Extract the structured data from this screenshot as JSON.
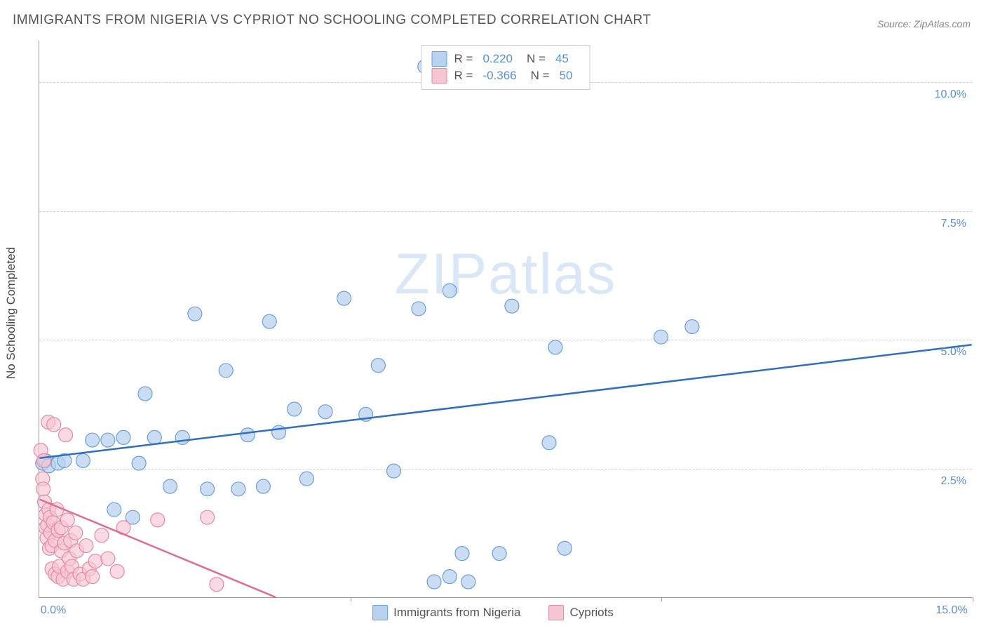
{
  "title": "IMMIGRANTS FROM NIGERIA VS CYPRIOT NO SCHOOLING COMPLETED CORRELATION CHART",
  "source": "Source: ZipAtlas.com",
  "ylabel": "No Schooling Completed",
  "watermark_a": "ZIP",
  "watermark_b": "atlas",
  "chart": {
    "type": "scatter",
    "background_color": "#ffffff",
    "grid_color": "#d0d0d0",
    "axis_color": "#999999",
    "text_color": "#555555",
    "tick_label_color": "#5a8fd6",
    "xlim": [
      0,
      15
    ],
    "ylim": [
      0,
      10.8
    ],
    "y_ticks": [
      2.5,
      5.0,
      7.5,
      10.0
    ],
    "y_tick_labels": [
      "2.5%",
      "5.0%",
      "7.5%",
      "10.0%"
    ],
    "x_ticks": [
      0,
      5,
      10,
      15
    ],
    "x_tick_labels_shown": {
      "0": "0.0%",
      "15": "15.0%"
    },
    "legend": {
      "rows": [
        {
          "swatch_fill": "#b8d2ef",
          "swatch_border": "#6a9fd8",
          "r_label": "R =",
          "r_value": "0.220",
          "n_label": "N =",
          "n_value": "45"
        },
        {
          "swatch_fill": "#f6c6d2",
          "swatch_border": "#e58aa4",
          "r_label": "R =",
          "r_value": "-0.366",
          "n_label": "N =",
          "n_value": "50"
        }
      ]
    },
    "bottom_legend": [
      {
        "swatch_fill": "#b8d2ef",
        "swatch_border": "#6a9fd8",
        "label": "Immigrants from Nigeria"
      },
      {
        "swatch_fill": "#f6c6d2",
        "swatch_border": "#e58aa4",
        "label": "Cypriots"
      }
    ],
    "series": [
      {
        "name": "nigeria",
        "marker_fill": "#b8d2ef",
        "marker_stroke": "#6a9fd8",
        "marker_opacity": 0.75,
        "marker_radius": 10,
        "line_color": "#2e6fc1",
        "line_width": 2.5,
        "trend": {
          "x1": 0,
          "y1": 2.7,
          "x2": 15,
          "y2": 4.9
        },
        "points": [
          [
            0.05,
            2.6
          ],
          [
            0.1,
            2.65
          ],
          [
            0.15,
            2.55
          ],
          [
            0.3,
            2.6
          ],
          [
            0.4,
            2.65
          ],
          [
            0.7,
            2.65
          ],
          [
            0.85,
            3.05
          ],
          [
            1.1,
            3.05
          ],
          [
            1.2,
            1.7
          ],
          [
            1.35,
            3.1
          ],
          [
            1.5,
            1.55
          ],
          [
            1.6,
            2.6
          ],
          [
            1.7,
            3.95
          ],
          [
            1.85,
            3.1
          ],
          [
            2.1,
            2.15
          ],
          [
            2.3,
            3.1
          ],
          [
            2.5,
            5.5
          ],
          [
            2.7,
            2.1
          ],
          [
            3.0,
            4.4
          ],
          [
            3.2,
            2.1
          ],
          [
            3.35,
            3.15
          ],
          [
            3.6,
            2.15
          ],
          [
            3.7,
            5.35
          ],
          [
            3.85,
            3.2
          ],
          [
            4.1,
            3.65
          ],
          [
            4.3,
            2.3
          ],
          [
            4.6,
            3.6
          ],
          [
            4.9,
            5.8
          ],
          [
            5.25,
            3.55
          ],
          [
            5.45,
            4.5
          ],
          [
            5.7,
            2.45
          ],
          [
            6.1,
            5.6
          ],
          [
            6.2,
            10.3
          ],
          [
            6.35,
            0.3
          ],
          [
            6.6,
            0.4
          ],
          [
            6.6,
            5.95
          ],
          [
            6.8,
            0.85
          ],
          [
            6.9,
            0.3
          ],
          [
            7.4,
            0.85
          ],
          [
            7.6,
            5.65
          ],
          [
            8.2,
            3.0
          ],
          [
            8.3,
            4.85
          ],
          [
            8.45,
            0.95
          ],
          [
            10.0,
            5.05
          ],
          [
            10.5,
            5.25
          ]
        ]
      },
      {
        "name": "cypriots",
        "marker_fill": "#f6c6d2",
        "marker_stroke": "#e58aa4",
        "marker_opacity": 0.65,
        "marker_radius": 10,
        "line_color": "#e26b8f",
        "line_width": 2.5,
        "trend": {
          "x1": 0,
          "y1": 1.9,
          "x2": 3.8,
          "y2": 0.0
        },
        "points": [
          [
            0.02,
            2.85
          ],
          [
            0.05,
            2.3
          ],
          [
            0.06,
            2.1
          ],
          [
            0.07,
            2.65
          ],
          [
            0.08,
            1.85
          ],
          [
            0.1,
            1.6
          ],
          [
            0.1,
            1.35
          ],
          [
            0.12,
            1.15
          ],
          [
            0.13,
            1.4
          ],
          [
            0.14,
            3.4
          ],
          [
            0.15,
            1.7
          ],
          [
            0.16,
            0.95
          ],
          [
            0.17,
            1.55
          ],
          [
            0.18,
            1.25
          ],
          [
            0.2,
            1.0
          ],
          [
            0.2,
            0.55
          ],
          [
            0.22,
            1.45
          ],
          [
            0.23,
            3.35
          ],
          [
            0.25,
            1.1
          ],
          [
            0.25,
            0.45
          ],
          [
            0.28,
            1.7
          ],
          [
            0.3,
            0.4
          ],
          [
            0.3,
            1.3
          ],
          [
            0.32,
            0.6
          ],
          [
            0.35,
            0.9
          ],
          [
            0.35,
            1.35
          ],
          [
            0.38,
            0.35
          ],
          [
            0.4,
            1.05
          ],
          [
            0.42,
            3.15
          ],
          [
            0.45,
            1.5
          ],
          [
            0.45,
            0.5
          ],
          [
            0.48,
            0.75
          ],
          [
            0.5,
            1.1
          ],
          [
            0.52,
            0.6
          ],
          [
            0.55,
            0.35
          ],
          [
            0.58,
            1.25
          ],
          [
            0.6,
            0.9
          ],
          [
            0.65,
            0.45
          ],
          [
            0.7,
            0.35
          ],
          [
            0.75,
            1.0
          ],
          [
            0.8,
            0.55
          ],
          [
            0.85,
            0.4
          ],
          [
            0.9,
            0.7
          ],
          [
            1.0,
            1.2
          ],
          [
            1.1,
            0.75
          ],
          [
            1.25,
            0.5
          ],
          [
            1.35,
            1.35
          ],
          [
            1.9,
            1.5
          ],
          [
            2.7,
            1.55
          ],
          [
            2.85,
            0.25
          ]
        ]
      }
    ]
  }
}
